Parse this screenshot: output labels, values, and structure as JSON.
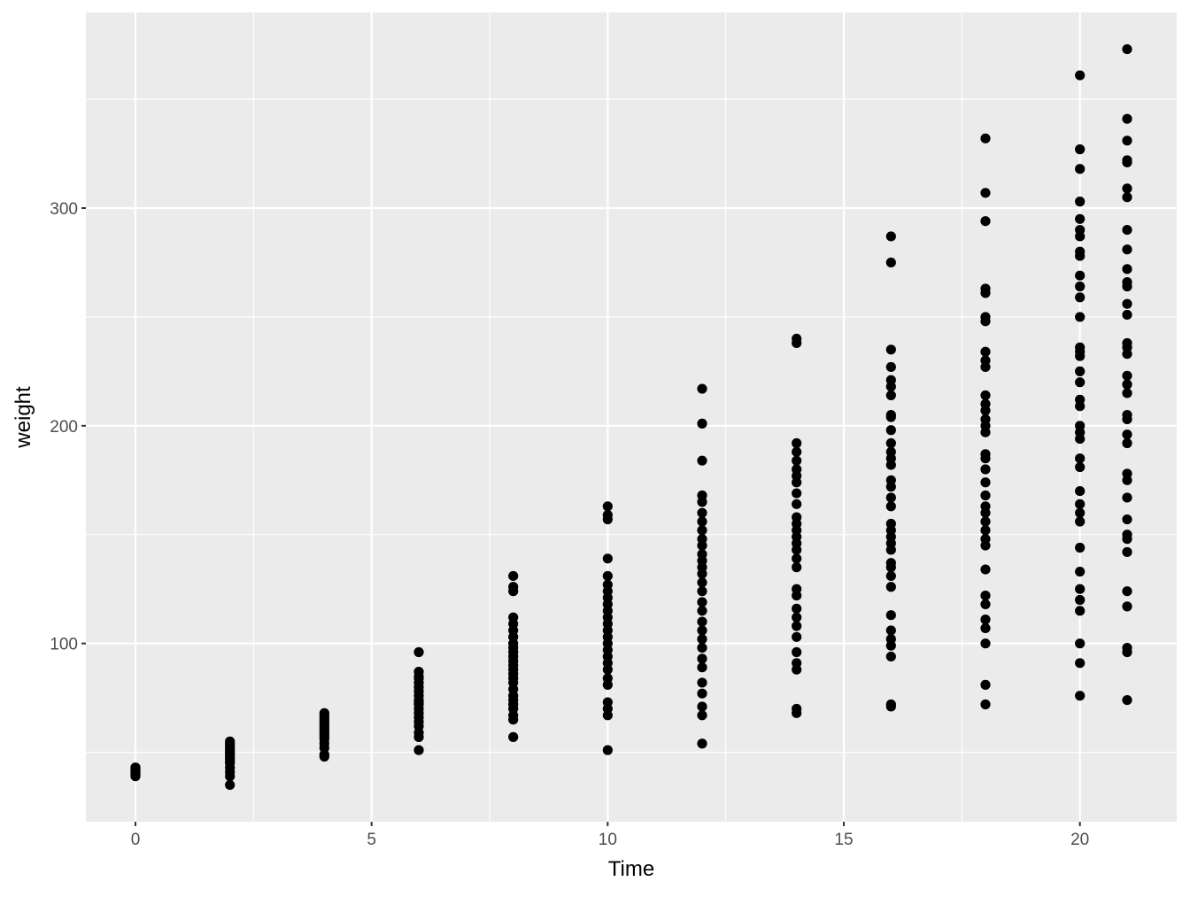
{
  "chart_data": {
    "type": "scatter",
    "title": "",
    "xlabel": "Time",
    "ylabel": "weight",
    "xlim": [
      -1.05,
      22.05
    ],
    "ylim": [
      18.1,
      389.9
    ],
    "x_ticks": [
      0,
      5,
      10,
      15,
      20
    ],
    "x_tick_labels": [
      "0",
      "5",
      "10",
      "15",
      "20"
    ],
    "y_ticks": [
      100,
      200,
      300
    ],
    "y_tick_labels": [
      "100",
      "200",
      "300"
    ],
    "grid": true,
    "panel_background": "#EBEBEB",
    "point_color": "#000000",
    "groups": [
      {
        "x": 0,
        "y": [
          39,
          40,
          40,
          41,
          41,
          41,
          42,
          42,
          42,
          43,
          43
        ]
      },
      {
        "x": 2,
        "y": [
          35,
          39,
          41,
          43,
          45,
          46,
          47,
          48,
          49,
          49,
          50,
          51,
          52,
          53,
          54,
          55
        ]
      },
      {
        "x": 4,
        "y": [
          48,
          49,
          52,
          54,
          56,
          57,
          58,
          59,
          60,
          61,
          62,
          63,
          64,
          65,
          66,
          67,
          68
        ]
      },
      {
        "x": 6,
        "y": [
          51,
          57,
          59,
          62,
          64,
          66,
          68,
          70,
          72,
          73,
          74,
          76,
          78,
          80,
          82,
          84,
          85,
          87,
          96
        ]
      },
      {
        "x": 8,
        "y": [
          57,
          65,
          67,
          70,
          72,
          74,
          76,
          79,
          82,
          84,
          86,
          88,
          90,
          92,
          94,
          96,
          98,
          100,
          103,
          106,
          109,
          112,
          124,
          126,
          131
        ]
      },
      {
        "x": 10,
        "y": [
          51,
          67,
          70,
          73,
          81,
          84,
          88,
          91,
          94,
          97,
          100,
          103,
          106,
          109,
          112,
          115,
          118,
          121,
          124,
          127,
          131,
          139,
          157,
          159,
          163
        ]
      },
      {
        "x": 12,
        "y": [
          54,
          67,
          71,
          77,
          82,
          89,
          93,
          98,
          102,
          106,
          110,
          115,
          119,
          124,
          128,
          132,
          135,
          138,
          141,
          145,
          148,
          152,
          156,
          160,
          165,
          168,
          184,
          201,
          217
        ]
      },
      {
        "x": 14,
        "y": [
          68,
          70,
          88,
          91,
          96,
          103,
          108,
          112,
          116,
          122,
          125,
          135,
          139,
          143,
          146,
          149,
          152,
          155,
          158,
          164,
          169,
          174,
          177,
          180,
          184,
          188,
          192,
          238,
          240
        ]
      },
      {
        "x": 16,
        "y": [
          71,
          72,
          94,
          99,
          102,
          106,
          113,
          126,
          131,
          135,
          137,
          143,
          146,
          149,
          152,
          155,
          163,
          167,
          172,
          175,
          182,
          185,
          188,
          192,
          198,
          204,
          205,
          214,
          218,
          221,
          227,
          235,
          275,
          287
        ]
      },
      {
        "x": 18,
        "y": [
          72,
          81,
          100,
          107,
          111,
          118,
          122,
          134,
          145,
          148,
          152,
          156,
          160,
          163,
          168,
          174,
          180,
          185,
          187,
          197,
          200,
          203,
          207,
          210,
          214,
          227,
          230,
          234,
          248,
          250,
          261,
          263,
          294,
          307,
          332
        ]
      },
      {
        "x": 20,
        "y": [
          76,
          91,
          100,
          115,
          120,
          125,
          133,
          144,
          156,
          160,
          164,
          170,
          181,
          185,
          194,
          197,
          200,
          209,
          212,
          220,
          225,
          232,
          234,
          236,
          250,
          259,
          264,
          269,
          278,
          280,
          287,
          290,
          295,
          303,
          318,
          327,
          361
        ]
      },
      {
        "x": 21,
        "y": [
          74,
          96,
          98,
          117,
          124,
          142,
          148,
          150,
          157,
          167,
          175,
          178,
          192,
          196,
          203,
          205,
          215,
          219,
          223,
          233,
          236,
          238,
          251,
          256,
          264,
          266,
          272,
          281,
          290,
          305,
          309,
          321,
          322,
          331,
          341,
          373
        ]
      }
    ]
  }
}
